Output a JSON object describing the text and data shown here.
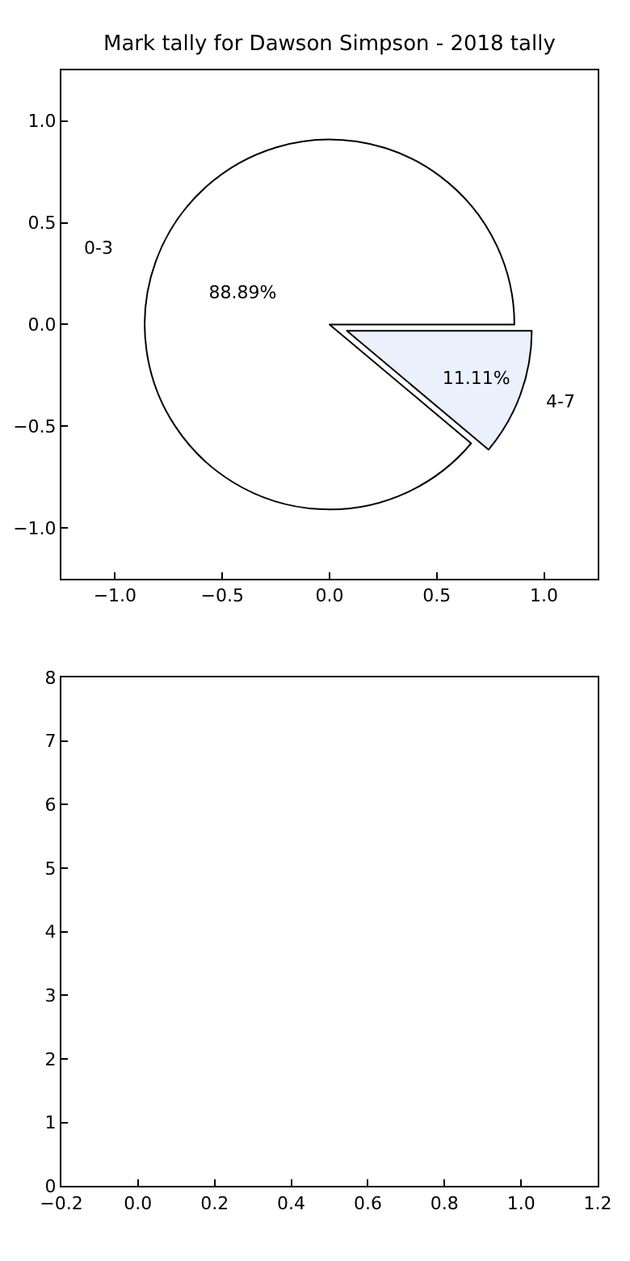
{
  "chart_data": [
    {
      "type": "pie",
      "title": "Mark tally for Dawson Simpson - 2018 tally",
      "categories": [
        "0-3",
        "4-7"
      ],
      "values": [
        88.89,
        11.11
      ],
      "colors": [
        "#ffffff",
        "#eaf0fc"
      ],
      "value_labels": [
        "88.89%",
        "11.11%"
      ]
    },
    {
      "type": "scatter",
      "xlim": [
        -1.25,
        1.25
      ],
      "ylim": [
        -1.25,
        1.25
      ],
      "xticks": [
        {
          "value": -1,
          "label": "−1.0"
        },
        {
          "value": -0.5,
          "label": "−0.5"
        },
        {
          "value": 0,
          "label": "0.0"
        },
        {
          "value": 0.5,
          "label": "0.5"
        },
        {
          "value": 1,
          "label": "1.0"
        }
      ],
      "yticks": [
        {
          "value": -1,
          "label": "−1.0"
        },
        {
          "value": -0.5,
          "label": "−0.5"
        },
        {
          "value": 0,
          "label": "0.0"
        },
        {
          "value": 0.5,
          "label": "0.5"
        },
        {
          "value": 1,
          "label": "1.0"
        }
      ]
    },
    {
      "type": "scatter",
      "xlim": [
        -0.2,
        1.2
      ],
      "ylim": [
        0,
        8
      ],
      "xticks": [
        {
          "value": -0.2,
          "label": "−0.2"
        },
        {
          "value": 0,
          "label": "0.0"
        },
        {
          "value": 0.2,
          "label": "0.2"
        },
        {
          "value": 0.4,
          "label": "0.4"
        },
        {
          "value": 0.6,
          "label": "0.6"
        },
        {
          "value": 0.8,
          "label": "0.8"
        },
        {
          "value": 1,
          "label": "1.0"
        },
        {
          "value": 1.2,
          "label": "1.2"
        }
      ],
      "yticks": [
        0,
        1,
        2,
        3,
        4,
        5,
        6,
        7,
        8
      ]
    }
  ]
}
